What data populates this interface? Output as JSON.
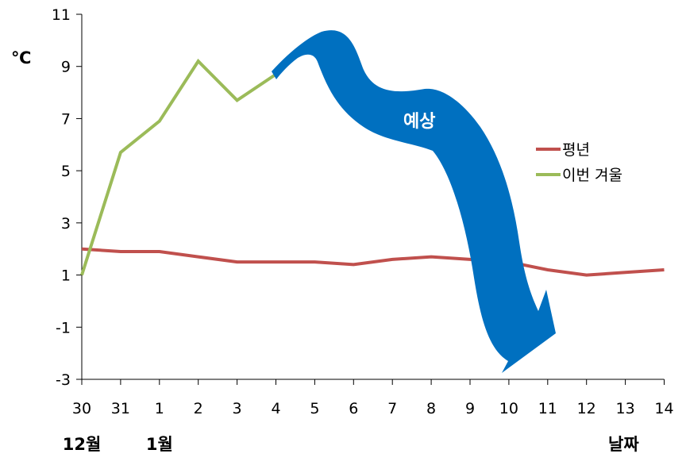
{
  "chart_data": {
    "type": "line",
    "ylabel": "℃",
    "ylim": [
      -3,
      11
    ],
    "yticks": [
      "11",
      "9",
      "7",
      "5",
      "3",
      "1",
      "-1",
      "-3"
    ],
    "yticks_values": [
      11,
      9,
      7,
      5,
      3,
      1,
      -1,
      -3
    ],
    "categories": [
      "30",
      "31",
      "1",
      "2",
      "3",
      "4",
      "5",
      "6",
      "7",
      "8",
      "9",
      "10",
      "11",
      "12",
      "13",
      "14"
    ],
    "month_labels": [
      {
        "text": "12월",
        "at_index": 0
      },
      {
        "text": "1월",
        "at_index": 2
      }
    ],
    "xlabel": "날짜",
    "grid": false,
    "legend_position": "right",
    "series": [
      {
        "name": "평년",
        "color": "#c0504d",
        "values": [
          2.0,
          1.9,
          1.9,
          1.7,
          1.5,
          1.5,
          1.5,
          1.4,
          1.6,
          1.7,
          1.6,
          1.5,
          1.2,
          1.0,
          1.1,
          1.2
        ]
      },
      {
        "name": "이번 겨울",
        "color": "#9bbb59",
        "values": [
          1.0,
          5.7,
          6.9,
          9.2,
          7.7,
          8.7,
          null,
          null,
          null,
          null,
          null,
          null,
          null,
          null,
          null,
          null
        ]
      }
    ],
    "annotation": {
      "text": "예상",
      "color": "#0070c0",
      "shape": "downward-arrow",
      "from_index": 5,
      "to_index": 11
    }
  }
}
